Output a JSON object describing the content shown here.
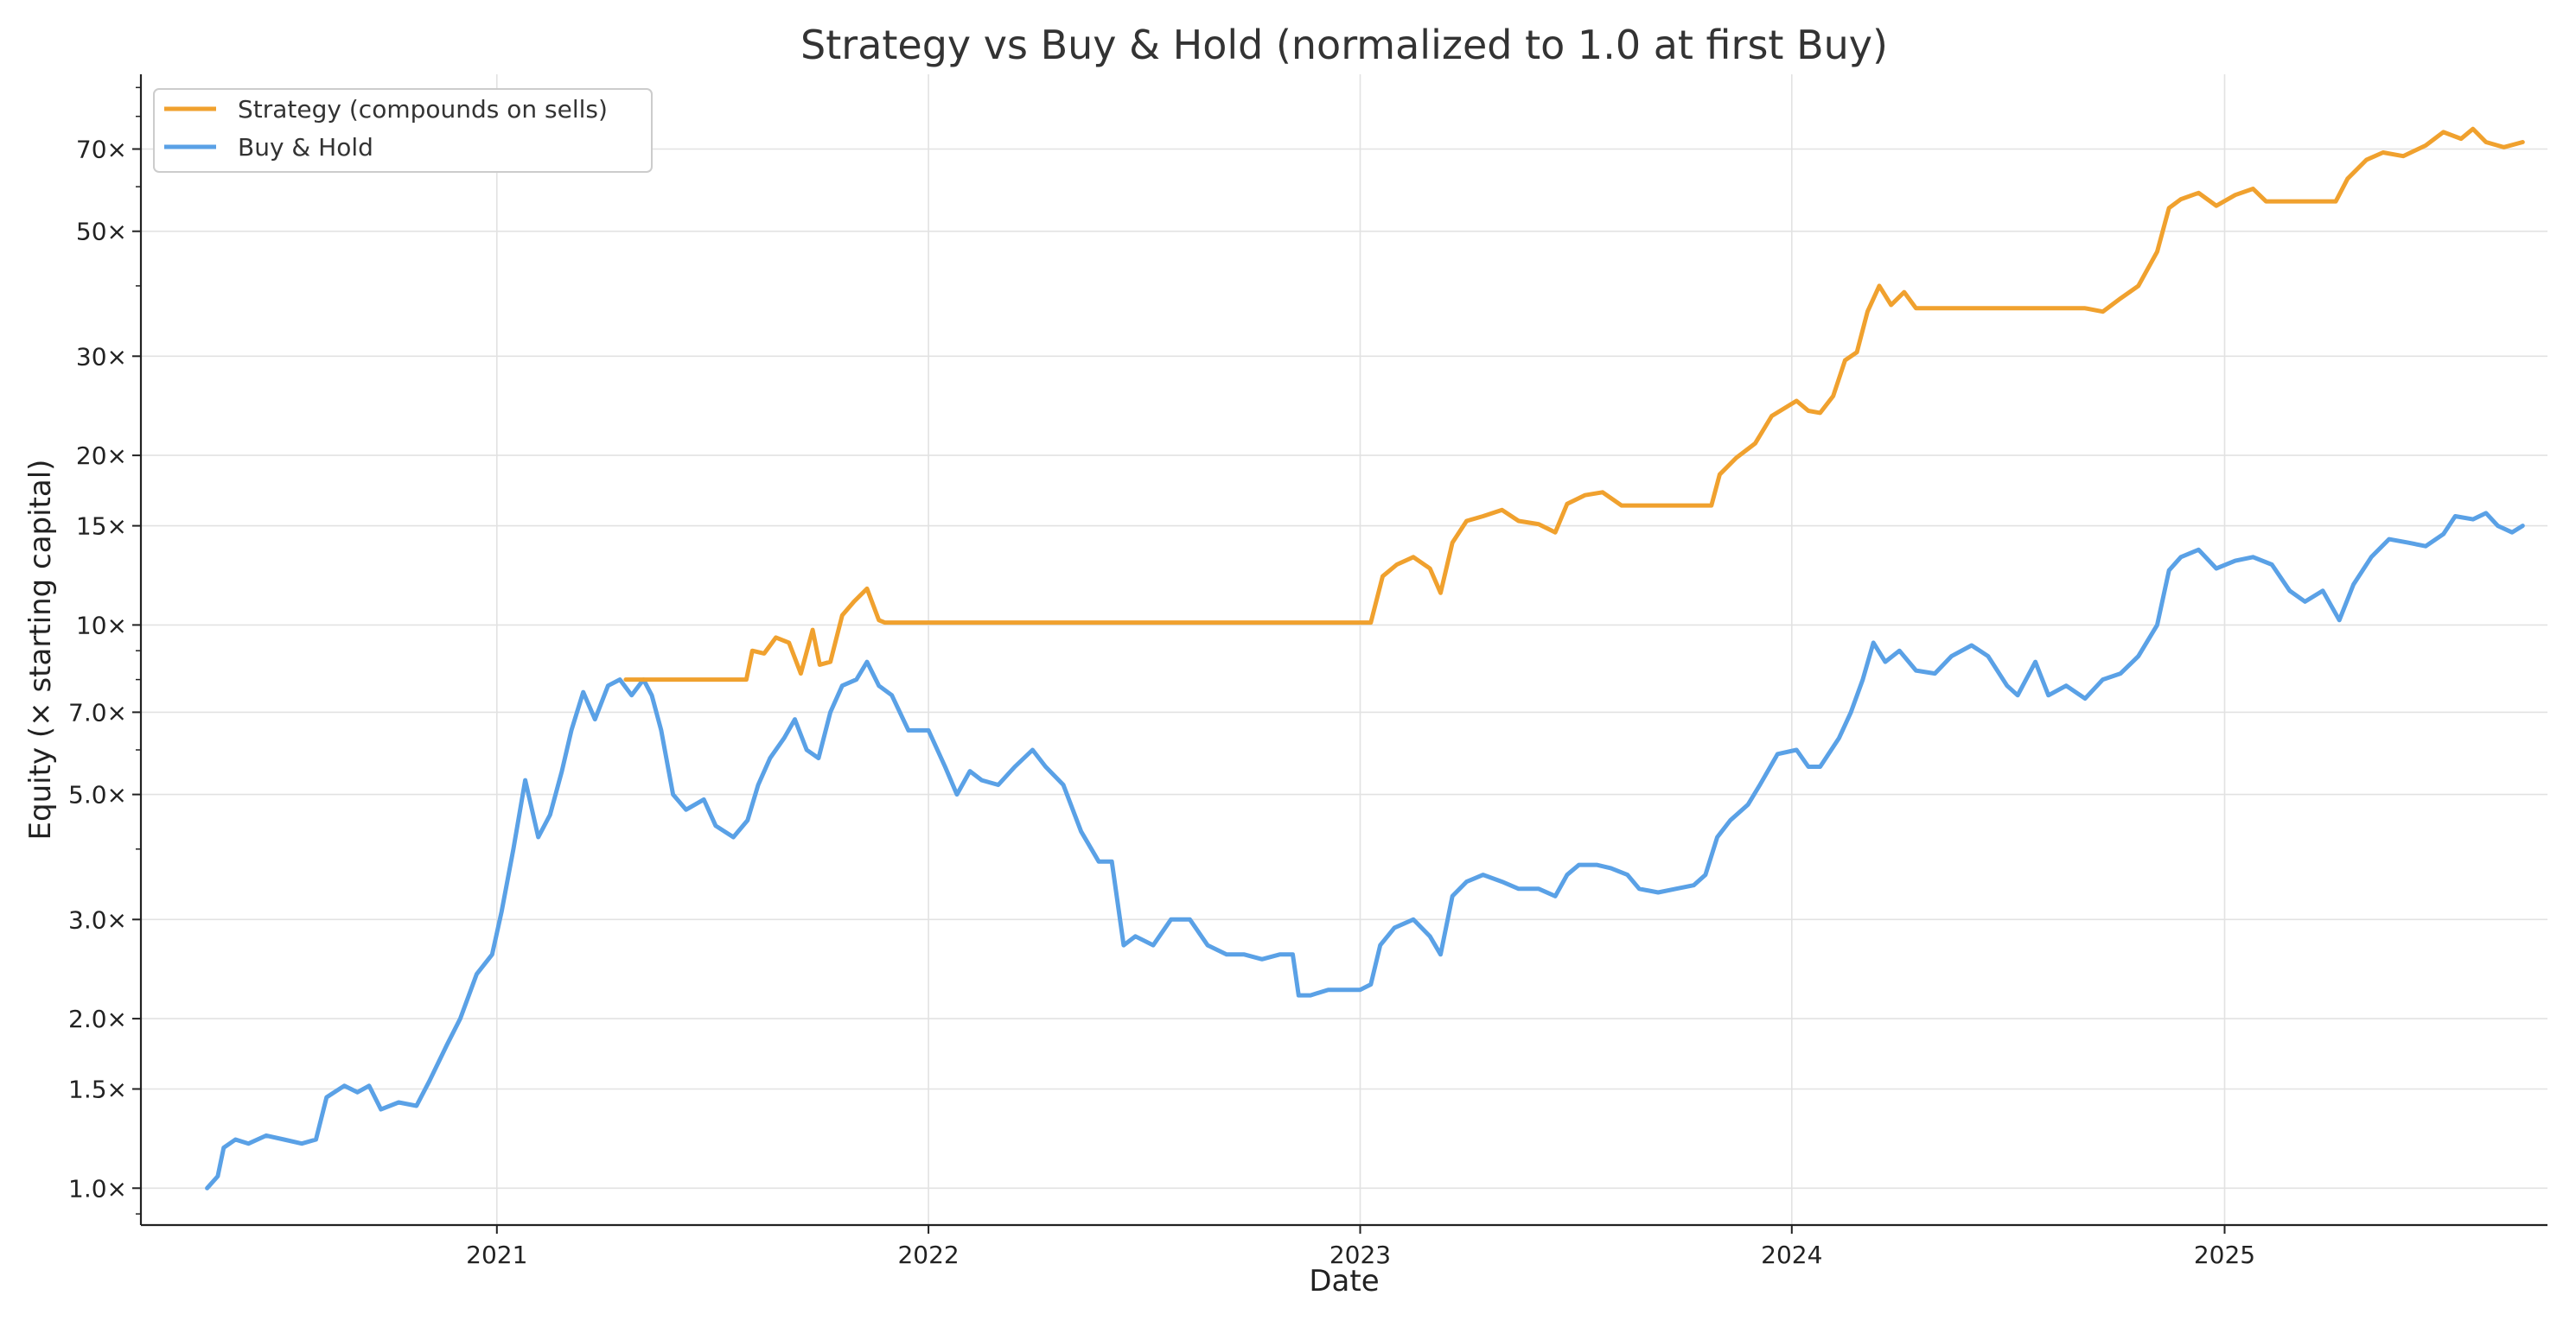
{
  "chart_data": {
    "type": "line",
    "title": "Strategy vs Buy & Hold (normalized to 1.0 at first Buy)",
    "xlabel": "Date",
    "ylabel": "Equity (× starting capital)",
    "yscale": "log",
    "ylim": [
      0.86,
      95
    ],
    "xlim": [
      "2020-03-06",
      "2025-10-01"
    ],
    "grid": true,
    "legend_position": "top-left",
    "x_ticks": [
      "2021-01-01",
      "2022-01-01",
      "2023-01-01",
      "2024-01-01",
      "2025-01-01"
    ],
    "x_tick_labels": [
      "2021",
      "2022",
      "2023",
      "2024",
      "2025"
    ],
    "y_ticks": [
      1.0,
      1.5,
      2.0,
      3.0,
      5.0,
      7.0,
      10,
      15,
      20,
      30,
      50,
      70
    ],
    "y_tick_labels": [
      "1.0×",
      "1.5×",
      "2.0×",
      "3.0×",
      "5.0×",
      "7.0×",
      "10×",
      "15×",
      "20×",
      "30×",
      "50×",
      "70×"
    ],
    "series": [
      {
        "name": "Buy & Hold",
        "color": "#5aa1e6",
        "points": [
          [
            "2020-05-01",
            1.0
          ],
          [
            "2020-05-10",
            1.05
          ],
          [
            "2020-05-15",
            1.18
          ],
          [
            "2020-05-25",
            1.22
          ],
          [
            "2020-06-05",
            1.2
          ],
          [
            "2020-06-20",
            1.24
          ],
          [
            "2020-07-05",
            1.22
          ],
          [
            "2020-07-20",
            1.2
          ],
          [
            "2020-08-01",
            1.22
          ],
          [
            "2020-08-10",
            1.45
          ],
          [
            "2020-08-25",
            1.52
          ],
          [
            "2020-09-05",
            1.48
          ],
          [
            "2020-09-15",
            1.52
          ],
          [
            "2020-09-25",
            1.38
          ],
          [
            "2020-10-10",
            1.42
          ],
          [
            "2020-10-25",
            1.4
          ],
          [
            "2020-11-05",
            1.55
          ],
          [
            "2020-11-20",
            1.8
          ],
          [
            "2020-12-01",
            2.0
          ],
          [
            "2020-12-15",
            2.4
          ],
          [
            "2020-12-28",
            2.6
          ],
          [
            "2021-01-05",
            3.1
          ],
          [
            "2021-01-15",
            4.0
          ],
          [
            "2021-01-25",
            5.3
          ],
          [
            "2021-02-05",
            4.2
          ],
          [
            "2021-02-15",
            4.6
          ],
          [
            "2021-02-25",
            5.5
          ],
          [
            "2021-03-05",
            6.5
          ],
          [
            "2021-03-15",
            7.6
          ],
          [
            "2021-03-25",
            6.8
          ],
          [
            "2021-04-05",
            7.8
          ],
          [
            "2021-04-15",
            8.0
          ],
          [
            "2021-04-25",
            7.5
          ],
          [
            "2021-05-05",
            8.0
          ],
          [
            "2021-05-12",
            7.5
          ],
          [
            "2021-05-20",
            6.5
          ],
          [
            "2021-05-30",
            5.0
          ],
          [
            "2021-06-10",
            4.7
          ],
          [
            "2021-06-25",
            4.9
          ],
          [
            "2021-07-05",
            4.4
          ],
          [
            "2021-07-20",
            4.2
          ],
          [
            "2021-08-01",
            4.5
          ],
          [
            "2021-08-10",
            5.2
          ],
          [
            "2021-08-20",
            5.8
          ],
          [
            "2021-09-01",
            6.3
          ],
          [
            "2021-09-10",
            6.8
          ],
          [
            "2021-09-20",
            6.0
          ],
          [
            "2021-09-30",
            5.8
          ],
          [
            "2021-10-10",
            7.0
          ],
          [
            "2021-10-20",
            7.8
          ],
          [
            "2021-11-01",
            8.0
          ],
          [
            "2021-11-10",
            8.6
          ],
          [
            "2021-11-20",
            7.8
          ],
          [
            "2021-12-01",
            7.5
          ],
          [
            "2021-12-15",
            6.5
          ],
          [
            "2022-01-01",
            6.5
          ],
          [
            "2022-01-15",
            5.6
          ],
          [
            "2022-01-25",
            5.0
          ],
          [
            "2022-02-05",
            5.5
          ],
          [
            "2022-02-15",
            5.3
          ],
          [
            "2022-03-01",
            5.2
          ],
          [
            "2022-03-15",
            5.6
          ],
          [
            "2022-03-30",
            6.0
          ],
          [
            "2022-04-10",
            5.6
          ],
          [
            "2022-04-25",
            5.2
          ],
          [
            "2022-05-10",
            4.3
          ],
          [
            "2022-05-25",
            3.8
          ],
          [
            "2022-06-05",
            3.8
          ],
          [
            "2022-06-15",
            2.7
          ],
          [
            "2022-06-25",
            2.8
          ],
          [
            "2022-07-10",
            2.7
          ],
          [
            "2022-07-25",
            3.0
          ],
          [
            "2022-08-10",
            3.0
          ],
          [
            "2022-08-25",
            2.7
          ],
          [
            "2022-09-10",
            2.6
          ],
          [
            "2022-09-25",
            2.6
          ],
          [
            "2022-10-10",
            2.55
          ],
          [
            "2022-10-25",
            2.6
          ],
          [
            "2022-11-05",
            2.6
          ],
          [
            "2022-11-10",
            2.2
          ],
          [
            "2022-11-20",
            2.2
          ],
          [
            "2022-12-05",
            2.25
          ],
          [
            "2022-12-20",
            2.25
          ],
          [
            "2023-01-01",
            2.25
          ],
          [
            "2023-01-10",
            2.3
          ],
          [
            "2023-01-18",
            2.7
          ],
          [
            "2023-01-30",
            2.9
          ],
          [
            "2023-02-15",
            3.0
          ],
          [
            "2023-03-01",
            2.8
          ],
          [
            "2023-03-10",
            2.6
          ],
          [
            "2023-03-20",
            3.3
          ],
          [
            "2023-04-01",
            3.5
          ],
          [
            "2023-04-15",
            3.6
          ],
          [
            "2023-05-01",
            3.5
          ],
          [
            "2023-05-15",
            3.4
          ],
          [
            "2023-06-01",
            3.4
          ],
          [
            "2023-06-15",
            3.3
          ],
          [
            "2023-06-25",
            3.6
          ],
          [
            "2023-07-05",
            3.75
          ],
          [
            "2023-07-20",
            3.75
          ],
          [
            "2023-08-01",
            3.7
          ],
          [
            "2023-08-15",
            3.6
          ],
          [
            "2023-08-25",
            3.4
          ],
          [
            "2023-09-10",
            3.35
          ],
          [
            "2023-09-25",
            3.4
          ],
          [
            "2023-10-10",
            3.45
          ],
          [
            "2023-10-20",
            3.6
          ],
          [
            "2023-10-30",
            4.2
          ],
          [
            "2023-11-10",
            4.5
          ],
          [
            "2023-11-25",
            4.8
          ],
          [
            "2023-12-05",
            5.2
          ],
          [
            "2023-12-20",
            5.9
          ],
          [
            "2024-01-05",
            6.0
          ],
          [
            "2024-01-15",
            5.6
          ],
          [
            "2024-01-25",
            5.6
          ],
          [
            "2024-02-10",
            6.3
          ],
          [
            "2024-02-20",
            7.0
          ],
          [
            "2024-03-01",
            8.0
          ],
          [
            "2024-03-10",
            9.3
          ],
          [
            "2024-03-20",
            8.6
          ],
          [
            "2024-04-01",
            9.0
          ],
          [
            "2024-04-15",
            8.3
          ],
          [
            "2024-05-01",
            8.2
          ],
          [
            "2024-05-15",
            8.8
          ],
          [
            "2024-06-01",
            9.2
          ],
          [
            "2024-06-15",
            8.8
          ],
          [
            "2024-07-01",
            7.8
          ],
          [
            "2024-07-10",
            7.5
          ],
          [
            "2024-07-25",
            8.6
          ],
          [
            "2024-08-05",
            7.5
          ],
          [
            "2024-08-20",
            7.8
          ],
          [
            "2024-09-05",
            7.4
          ],
          [
            "2024-09-20",
            8.0
          ],
          [
            "2024-10-05",
            8.2
          ],
          [
            "2024-10-20",
            8.8
          ],
          [
            "2024-11-05",
            10.0
          ],
          [
            "2024-11-15",
            12.5
          ],
          [
            "2024-11-25",
            13.2
          ],
          [
            "2024-12-10",
            13.6
          ],
          [
            "2024-12-25",
            12.6
          ],
          [
            "2025-01-10",
            13.0
          ],
          [
            "2025-01-25",
            13.2
          ],
          [
            "2025-02-10",
            12.8
          ],
          [
            "2025-02-25",
            11.5
          ],
          [
            "2025-03-10",
            11.0
          ],
          [
            "2025-03-25",
            11.5
          ],
          [
            "2025-04-08",
            10.2
          ],
          [
            "2025-04-20",
            11.8
          ],
          [
            "2025-05-05",
            13.2
          ],
          [
            "2025-05-20",
            14.2
          ],
          [
            "2025-06-05",
            14.0
          ],
          [
            "2025-06-20",
            13.8
          ],
          [
            "2025-07-05",
            14.5
          ],
          [
            "2025-07-15",
            15.6
          ],
          [
            "2025-07-30",
            15.4
          ],
          [
            "2025-08-10",
            15.8
          ],
          [
            "2025-08-20",
            15.0
          ],
          [
            "2025-09-01",
            14.6
          ],
          [
            "2025-09-10",
            15.0
          ]
        ]
      },
      {
        "name": "Strategy (compounds on sells)",
        "color": "#f0a12e",
        "points": [
          [
            "2021-04-20",
            8.0
          ],
          [
            "2021-07-31",
            8.0
          ],
          [
            "2021-08-05",
            9.0
          ],
          [
            "2021-08-15",
            8.9
          ],
          [
            "2021-08-25",
            9.5
          ],
          [
            "2021-09-05",
            9.3
          ],
          [
            "2021-09-15",
            8.2
          ],
          [
            "2021-09-25",
            9.8
          ],
          [
            "2021-10-01",
            8.5
          ],
          [
            "2021-10-10",
            8.6
          ],
          [
            "2021-10-20",
            10.4
          ],
          [
            "2021-10-30",
            11.0
          ],
          [
            "2021-11-10",
            11.6
          ],
          [
            "2021-11-20",
            10.2
          ],
          [
            "2021-11-25",
            10.1
          ],
          [
            "2022-12-31",
            10.1
          ],
          [
            "2023-01-10",
            10.1
          ],
          [
            "2023-01-20",
            12.2
          ],
          [
            "2023-02-01",
            12.8
          ],
          [
            "2023-02-15",
            13.2
          ],
          [
            "2023-03-01",
            12.6
          ],
          [
            "2023-03-10",
            11.4
          ],
          [
            "2023-03-20",
            14.0
          ],
          [
            "2023-04-01",
            15.3
          ],
          [
            "2023-04-15",
            15.6
          ],
          [
            "2023-05-01",
            16.0
          ],
          [
            "2023-05-15",
            15.3
          ],
          [
            "2023-06-01",
            15.1
          ],
          [
            "2023-06-15",
            14.6
          ],
          [
            "2023-06-25",
            16.4
          ],
          [
            "2023-07-10",
            17.0
          ],
          [
            "2023-07-25",
            17.2
          ],
          [
            "2023-08-10",
            16.3
          ],
          [
            "2023-10-25",
            16.3
          ],
          [
            "2023-11-01",
            18.5
          ],
          [
            "2023-11-15",
            19.8
          ],
          [
            "2023-12-01",
            21.0
          ],
          [
            "2023-12-15",
            23.5
          ],
          [
            "2024-01-05",
            25.0
          ],
          [
            "2024-01-15",
            24.0
          ],
          [
            "2024-01-25",
            23.8
          ],
          [
            "2024-02-05",
            25.5
          ],
          [
            "2024-02-15",
            29.5
          ],
          [
            "2024-02-25",
            30.5
          ],
          [
            "2024-03-05",
            36.0
          ],
          [
            "2024-03-15",
            40.0
          ],
          [
            "2024-03-25",
            37.0
          ],
          [
            "2024-04-05",
            39.0
          ],
          [
            "2024-04-15",
            36.5
          ],
          [
            "2024-04-20",
            36.5
          ],
          [
            "2024-09-05",
            36.5
          ],
          [
            "2024-09-20",
            36.0
          ],
          [
            "2024-10-05",
            38.0
          ],
          [
            "2024-10-20",
            40.0
          ],
          [
            "2024-11-05",
            46.0
          ],
          [
            "2024-11-15",
            55.0
          ],
          [
            "2024-11-25",
            57.0
          ],
          [
            "2024-12-10",
            58.5
          ],
          [
            "2024-12-25",
            55.5
          ],
          [
            "2025-01-10",
            58.0
          ],
          [
            "2025-01-25",
            59.5
          ],
          [
            "2025-02-05",
            56.5
          ],
          [
            "2025-03-25",
            56.5
          ],
          [
            "2025-04-05",
            56.5
          ],
          [
            "2025-04-15",
            62.0
          ],
          [
            "2025-05-01",
            67.0
          ],
          [
            "2025-05-15",
            69.0
          ],
          [
            "2025-06-01",
            68.0
          ],
          [
            "2025-06-20",
            71.0
          ],
          [
            "2025-07-05",
            75.0
          ],
          [
            "2025-07-20",
            73.0
          ],
          [
            "2025-07-30",
            76.0
          ],
          [
            "2025-08-10",
            72.0
          ],
          [
            "2025-08-25",
            70.5
          ],
          [
            "2025-09-10",
            72.0
          ]
        ]
      }
    ],
    "legend": [
      {
        "label": "Strategy (compounds on sells)",
        "color": "#f0a12e"
      },
      {
        "label": "Buy & Hold",
        "color": "#5aa1e6"
      }
    ]
  }
}
